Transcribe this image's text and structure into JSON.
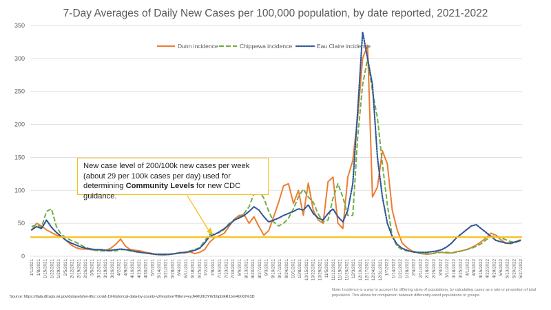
{
  "chart_data": {
    "type": "line",
    "title": "7-Day Averages of Daily New Cases per 100,000 population, by date reported, 2021-2022",
    "xlabel": "",
    "ylabel": "",
    "ylim": [
      0,
      350
    ],
    "yticks": [
      0,
      50,
      100,
      150,
      200,
      250,
      300,
      350
    ],
    "x_tick_labels": [
      "1/1/2021",
      "1/8/2021",
      "1/15/2021",
      "1/22/2021",
      "1/29/2021",
      "2/5/2021",
      "2/12/2021",
      "2/19/2021",
      "2/26/2021",
      "3/5/2021",
      "3/12/2021",
      "3/19/2021",
      "3/26/2021",
      "4/2/2021",
      "4/9/2021",
      "4/16/2021",
      "4/23/2021",
      "4/30/2021",
      "5/7/2021",
      "5/14/2021",
      "5/21/2021",
      "5/28/2021",
      "6/4/2021",
      "6/11/2021",
      "6/18/2021",
      "6/25/2021",
      "7/2/2021",
      "7/9/2021",
      "7/16/2021",
      "7/23/2021",
      "7/30/2021",
      "8/6/2021",
      "8/13/2021",
      "8/20/2021",
      "8/27/2021",
      "9/3/2021",
      "9/10/2021",
      "9/17/2021",
      "9/24/2021",
      "10/1/2021",
      "10/8/2021",
      "10/15/2021",
      "10/22/2021",
      "10/29/2021",
      "11/5/2021",
      "11/12/2021",
      "11/19/2021",
      "11/26/2021",
      "12/3/2021",
      "12/10/2021",
      "12/17/2021",
      "12/24/2021",
      "12/31/2021",
      "1/7/2022",
      "1/14/2022",
      "1/21/2022",
      "1/28/2022",
      "2/4/2022",
      "2/11/2022",
      "2/18/2022",
      "2/25/2022",
      "3/4/2022",
      "3/11/2022",
      "3/18/2022",
      "3/25/2022",
      "4/1/2022",
      "4/8/2022",
      "4/15/2022",
      "4/22/2022",
      "4/29/2022",
      "5/6/2022",
      "5/13/2022",
      "5/20/2022",
      "5/27/2022"
    ],
    "x_tick_label_style": "every other label shown, rotated vertically",
    "reference_line": {
      "value": 29,
      "color": "#f5c21b"
    },
    "annotation": {
      "text_before": "New case level of 200/100k new cases per week (about 29 per 100k cases per day) used for determining ",
      "bold": "Community Levels",
      "text_after": " for new CDC guidance."
    },
    "legend_position": "top-center",
    "series": [
      {
        "name": "Dunn incidence",
        "color": "#ed7d31",
        "dash": "solid",
        "values": [
          40,
          50,
          46,
          40,
          36,
          32,
          30,
          24,
          17,
          13,
          11,
          11,
          10,
          9,
          10,
          9,
          12,
          18,
          26,
          15,
          10,
          9,
          8,
          6,
          5,
          3,
          2,
          2,
          3,
          4,
          6,
          5,
          7,
          4,
          6,
          10,
          21,
          28,
          31,
          35,
          46,
          56,
          62,
          63,
          50,
          60,
          45,
          32,
          39,
          60,
          82,
          107,
          110,
          80,
          100,
          62,
          111,
          70,
          55,
          50,
          113,
          120,
          50,
          42,
          120,
          145,
          210,
          300,
          320,
          90,
          105,
          160,
          140,
          70,
          40,
          20,
          13,
          8,
          6,
          4,
          3,
          4,
          6,
          6,
          5,
          5,
          7,
          8,
          10,
          13,
          17,
          22,
          28,
          35,
          32,
          25,
          20,
          19,
          22,
          25
        ]
      },
      {
        "name": "Chippewa incidence",
        "color": "#70ad47",
        "dash": "dashed",
        "values": [
          45,
          48,
          44,
          68,
          72,
          45,
          33,
          28,
          24,
          21,
          17,
          13,
          11,
          9,
          8,
          8,
          8,
          8,
          10,
          10,
          8,
          7,
          6,
          5,
          4,
          3,
          3,
          2,
          3,
          4,
          5,
          6,
          8,
          10,
          13,
          23,
          33,
          34,
          36,
          41,
          50,
          54,
          60,
          65,
          75,
          95,
          100,
          88,
          68,
          52,
          46,
          50,
          58,
          72,
          90,
          102,
          90,
          82,
          64,
          52,
          55,
          88,
          110,
          90,
          62,
          62,
          180,
          260,
          300,
          250,
          210,
          140,
          78,
          30,
          15,
          10,
          8,
          7,
          5,
          4,
          4,
          4,
          5,
          6,
          6,
          5,
          6,
          8,
          10,
          12,
          15,
          19,
          25,
          30,
          31,
          28,
          25,
          22,
          21,
          24
        ]
      },
      {
        "name": "Eau Claire incidence",
        "color": "#2e5597",
        "dash": "dotted",
        "values": [
          40,
          45,
          42,
          55,
          44,
          36,
          30,
          24,
          20,
          17,
          14,
          12,
          11,
          10,
          10,
          9,
          9,
          10,
          11,
          10,
          9,
          7,
          6,
          5,
          4,
          3,
          3,
          3,
          3,
          4,
          5,
          6,
          7,
          9,
          12,
          20,
          30,
          33,
          37,
          42,
          48,
          55,
          58,
          62,
          68,
          75,
          70,
          60,
          52,
          55,
          58,
          62,
          65,
          68,
          72,
          70,
          78,
          65,
          58,
          55,
          65,
          72,
          60,
          52,
          70,
          110,
          220,
          340,
          300,
          260,
          150,
          90,
          50,
          30,
          18,
          12,
          9,
          7,
          6,
          6,
          6,
          7,
          8,
          10,
          14,
          20,
          28,
          34,
          40,
          46,
          48,
          42,
          36,
          30,
          24,
          22,
          20,
          20,
          22,
          24
        ]
      }
    ]
  },
  "footer": {
    "source": "Source: https://data.dhsgis.wi.gov/datasets/wi-dhs::covid-19-historical-data-by-county-v2/explore?filters=eyJHRU9OYW1lIjpbIkR1bm4iXX0%3D",
    "note": "Note:  Incidence is a way to account for differing sizes of populations, by calculating cases as a rate or proportion of total population.  This allows for comparison between differently-sized populations or groups."
  }
}
